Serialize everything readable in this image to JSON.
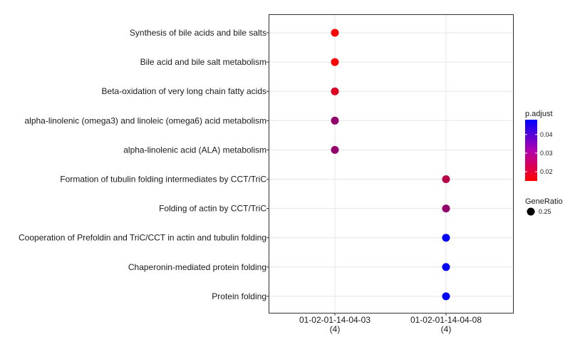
{
  "chart_data": {
    "type": "scatter",
    "title": "",
    "xlabel": "",
    "ylabel": "",
    "grid": true,
    "legend_position": "right",
    "categories_x": [
      {
        "line1": "01-02-01-14-04-03",
        "line2": "(4)"
      },
      {
        "line1": "01-02-01-14-04-08",
        "line2": "(4)"
      }
    ],
    "categories_y": [
      "Synthesis of bile acids and bile salts",
      "Bile acid and bile salt metabolism",
      "Beta-oxidation of very long chain fatty acids",
      "alpha-linolenic (omega3) and linoleic (omega6) acid metabolism",
      "alpha-linolenic acid (ALA) metabolism",
      "Formation of tubulin folding intermediates by CCT/TriC",
      "Folding of actin by CCT/TriC",
      "Cooperation of Prefoldin and TriC/CCT  in actin and tubulin folding",
      "Chaperonin-mediated protein folding",
      "Protein folding"
    ],
    "points": [
      {
        "x": 0,
        "y": 0,
        "p_adjust": 0.015,
        "gene_ratio": 0.25
      },
      {
        "x": 0,
        "y": 1,
        "p_adjust": 0.015,
        "gene_ratio": 0.25
      },
      {
        "x": 0,
        "y": 2,
        "p_adjust": 0.019,
        "gene_ratio": 0.25
      },
      {
        "x": 0,
        "y": 3,
        "p_adjust": 0.029,
        "gene_ratio": 0.25
      },
      {
        "x": 0,
        "y": 4,
        "p_adjust": 0.029,
        "gene_ratio": 0.25
      },
      {
        "x": 1,
        "y": 5,
        "p_adjust": 0.024,
        "gene_ratio": 0.25
      },
      {
        "x": 1,
        "y": 6,
        "p_adjust": 0.029,
        "gene_ratio": 0.25
      },
      {
        "x": 1,
        "y": 7,
        "p_adjust": 0.048,
        "gene_ratio": 0.25
      },
      {
        "x": 1,
        "y": 8,
        "p_adjust": 0.048,
        "gene_ratio": 0.25
      },
      {
        "x": 1,
        "y": 9,
        "p_adjust": 0.048,
        "gene_ratio": 0.25
      }
    ],
    "color_legend": {
      "title": "p.adjust",
      "range": [
        0.015,
        0.048
      ],
      "ticks": [
        "0.04",
        "0.03",
        "0.02"
      ],
      "tick_values": [
        0.04,
        0.03,
        0.02
      ],
      "low_color": "#ff0000",
      "high_color": "#0000ff"
    },
    "size_legend": {
      "title": "GeneRatio",
      "entries": [
        {
          "label": "0.25",
          "value": 0.25
        }
      ]
    }
  }
}
